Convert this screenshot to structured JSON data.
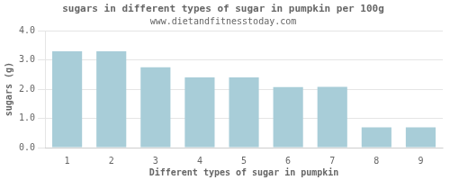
{
  "chart_data": {
    "type": "bar",
    "title": "sugars in different types of sugar in pumpkin per 100g",
    "subtitle": "www.dietandfitnesstoday.com",
    "xlabel": "Different types of sugar in pumpkin",
    "ylabel": "sugars (g)",
    "categories": [
      "1",
      "2",
      "3",
      "4",
      "5",
      "6",
      "7",
      "8",
      "9"
    ],
    "values": [
      3.3,
      3.3,
      2.75,
      2.4,
      2.4,
      2.07,
      2.08,
      0.69,
      0.69
    ],
    "color": "#a8cdd8",
    "ylim": [
      0,
      4.0
    ],
    "yticks": [
      {
        "value": 0,
        "label": "0.0"
      },
      {
        "value": 1,
        "label": "1.0"
      },
      {
        "value": 2,
        "label": "2.0"
      },
      {
        "value": 3,
        "label": "3.0"
      },
      {
        "value": 4,
        "label": "4.0"
      }
    ],
    "grid": true
  }
}
